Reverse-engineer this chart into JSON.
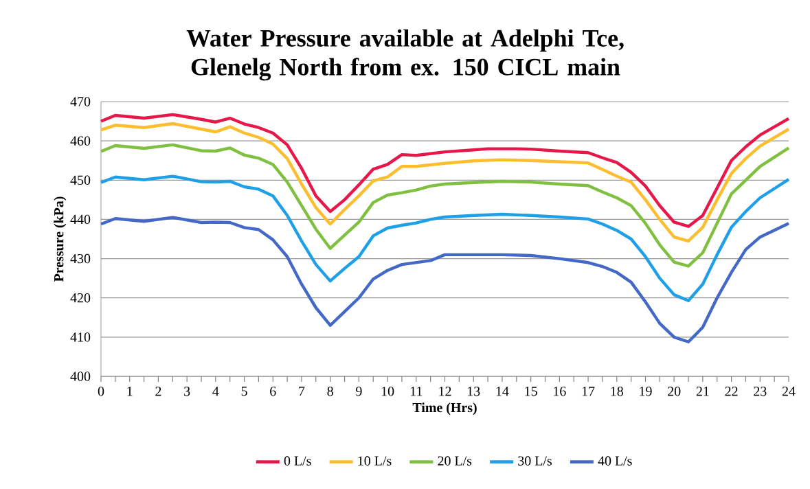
{
  "chart_data": {
    "type": "line",
    "title": "Water Pressure available at Adelphi Tce, Glenelg North from ex. 150 CICL main",
    "xlabel": "Time (Hrs)",
    "ylabel": "Pressure (kPa)",
    "xlim": [
      0,
      24
    ],
    "ylim": [
      400,
      470
    ],
    "xticks": [
      0,
      {
        "value": 0.5,
        "label": null
      },
      1,
      {
        "value": 1.5,
        "label": null
      },
      2,
      {
        "value": 2.5,
        "label": null
      },
      3,
      {
        "value": 3.5,
        "label": null
      },
      4,
      {
        "value": 4.5,
        "label": null
      },
      5,
      {
        "value": 5.5,
        "label": null
      },
      6,
      {
        "value": 6.5,
        "label": null
      },
      7,
      {
        "value": 7.5,
        "label": null
      },
      8,
      {
        "value": 8.5,
        "label": null
      },
      9,
      {
        "value": 9.5,
        "label": null
      },
      10,
      {
        "value": 10.5,
        "label": null
      },
      11,
      {
        "value": 11.5,
        "label": null
      },
      12,
      {
        "value": 12.5,
        "label": null
      },
      13,
      {
        "value": 13.5,
        "label": null
      },
      14,
      {
        "value": 14.5,
        "label": null
      },
      15,
      {
        "value": 15.5,
        "label": null
      },
      16,
      {
        "value": 16.5,
        "label": null
      },
      17,
      {
        "value": 17.5,
        "label": null
      },
      18,
      {
        "value": 18.5,
        "label": null
      },
      19,
      {
        "value": 19.5,
        "label": null
      },
      20,
      {
        "value": 20.5,
        "label": null
      },
      21,
      {
        "value": 21.5,
        "label": null
      },
      22,
      {
        "value": 22.5,
        "label": null
      },
      23,
      {
        "value": 23.5,
        "label": null
      },
      24
    ],
    "yticks": [
      400,
      410,
      420,
      430,
      440,
      450,
      460,
      470
    ],
    "grid": "y",
    "legend": "bottom",
    "marker": "none",
    "line_style": "solid",
    "series": [
      {
        "name": "0 L/s",
        "color": "#e8174a",
        "x": [
          0,
          0.5,
          1.5,
          2.5,
          3.5,
          4,
          4.5,
          5,
          5.5,
          6,
          6.5,
          7,
          7.5,
          8,
          8.5,
          9,
          9.5,
          10,
          10.5,
          11,
          12,
          13,
          13.5,
          14.5,
          15,
          16,
          17,
          17.5,
          18,
          18.5,
          19,
          19.5,
          20,
          20.5,
          21,
          21.5,
          22,
          22.5,
          23,
          24
        ],
        "values": [
          465,
          466.5,
          465.8,
          466.7,
          465.5,
          464.8,
          465.8,
          464.3,
          463.4,
          462,
          459,
          453,
          446,
          442,
          445,
          448.8,
          452.8,
          454,
          456.5,
          456.3,
          457.2,
          457.7,
          458,
          458,
          457.9,
          457.4,
          457,
          455.7,
          454.5,
          452,
          448.5,
          443.5,
          439.3,
          438.2,
          441,
          448,
          455,
          458.5,
          461.5,
          465.7
        ]
      },
      {
        "name": "10 L/s",
        "color": "#fcbd2e",
        "x": [
          0,
          0.5,
          1.5,
          2.5,
          3.5,
          4,
          4.5,
          5,
          5.5,
          6,
          6.5,
          7,
          7.5,
          8,
          8.5,
          9,
          9.5,
          10,
          10.5,
          11,
          12,
          13,
          14,
          15,
          16,
          17,
          17.5,
          18,
          18.5,
          19,
          19.5,
          20,
          20.5,
          21,
          21.5,
          22,
          22.5,
          23,
          24
        ],
        "values": [
          462.8,
          464,
          463.4,
          464.4,
          463,
          462.3,
          463.6,
          462,
          460.9,
          459.2,
          455.5,
          449,
          443,
          438.8,
          442.5,
          446,
          449.8,
          450.8,
          453.5,
          453.5,
          454.3,
          454.9,
          455.2,
          455,
          454.7,
          454.4,
          452.7,
          451,
          449.5,
          445,
          440,
          435.5,
          434.5,
          438,
          445,
          451.7,
          455.5,
          458.7,
          463
        ]
      },
      {
        "name": "20 L/s",
        "color": "#80c040",
        "x": [
          0,
          0.5,
          1.5,
          2.5,
          3.5,
          4,
          4.5,
          5,
          5.5,
          6,
          6.5,
          7,
          7.5,
          8,
          8.5,
          9,
          9.5,
          10,
          10.5,
          11,
          11.5,
          12,
          13,
          14,
          15,
          16,
          17,
          17.5,
          18,
          18.5,
          19,
          19.5,
          20,
          20.5,
          21,
          21.5,
          22,
          22.5,
          23,
          24
        ],
        "values": [
          457.3,
          458.8,
          458.1,
          459,
          457.5,
          457.4,
          458.2,
          456.4,
          455.6,
          454,
          449.5,
          443.5,
          437.5,
          432.6,
          436,
          439.3,
          444.3,
          446.2,
          446.8,
          447.5,
          448.5,
          449,
          449.4,
          449.7,
          449.5,
          449,
          448.6,
          447,
          445.5,
          443.5,
          439,
          433.5,
          429.1,
          428.1,
          431.5,
          439,
          446.5,
          450,
          453.5,
          458.2
        ]
      },
      {
        "name": "30 L/s",
        "color": "#1ea0e8",
        "x": [
          0,
          0.5,
          1.5,
          2.5,
          3.5,
          4,
          4.5,
          5,
          5.5,
          6,
          6.5,
          7,
          7.5,
          8,
          8.5,
          9,
          9.5,
          10,
          10.5,
          11,
          11.5,
          12,
          13,
          14,
          15,
          16,
          17,
          17.5,
          18,
          18.5,
          19,
          19.5,
          20,
          20.5,
          21,
          21.5,
          22,
          22.5,
          23,
          24
        ],
        "values": [
          449.4,
          450.8,
          450.1,
          451,
          449.6,
          449.5,
          449.7,
          448.3,
          447.7,
          446,
          441,
          434.5,
          428.5,
          424.3,
          427.5,
          430.5,
          435.8,
          437.8,
          438.5,
          439.1,
          440,
          440.6,
          441,
          441.3,
          441,
          440.6,
          440.1,
          438.8,
          437.2,
          435,
          430.5,
          425,
          420.8,
          419.3,
          423.5,
          431,
          438,
          442,
          445.5,
          450.2
        ]
      },
      {
        "name": "40 L/s",
        "color": "#4468c8",
        "x": [
          0,
          0.5,
          1.5,
          2.5,
          3.5,
          4,
          4.5,
          5,
          5.5,
          6,
          6.5,
          7,
          7.5,
          8,
          8.5,
          9,
          9.5,
          10,
          10.5,
          11,
          11.5,
          12,
          13,
          14,
          15,
          16,
          17,
          17.5,
          18,
          18.5,
          19,
          19.5,
          20,
          20.5,
          21,
          21.5,
          22,
          22.5,
          23,
          24
        ],
        "values": [
          438.8,
          440.2,
          439.5,
          440.5,
          439.2,
          439.3,
          439.2,
          437.9,
          437.4,
          434.8,
          430.5,
          423.5,
          417.5,
          413,
          416.5,
          420,
          424.8,
          427,
          428.5,
          429,
          429.5,
          431,
          431,
          431,
          430.8,
          430,
          429,
          428,
          426.5,
          424,
          419,
          413.5,
          410,
          408.8,
          412.5,
          420,
          426.5,
          432.3,
          435.5,
          439
        ]
      }
    ]
  }
}
